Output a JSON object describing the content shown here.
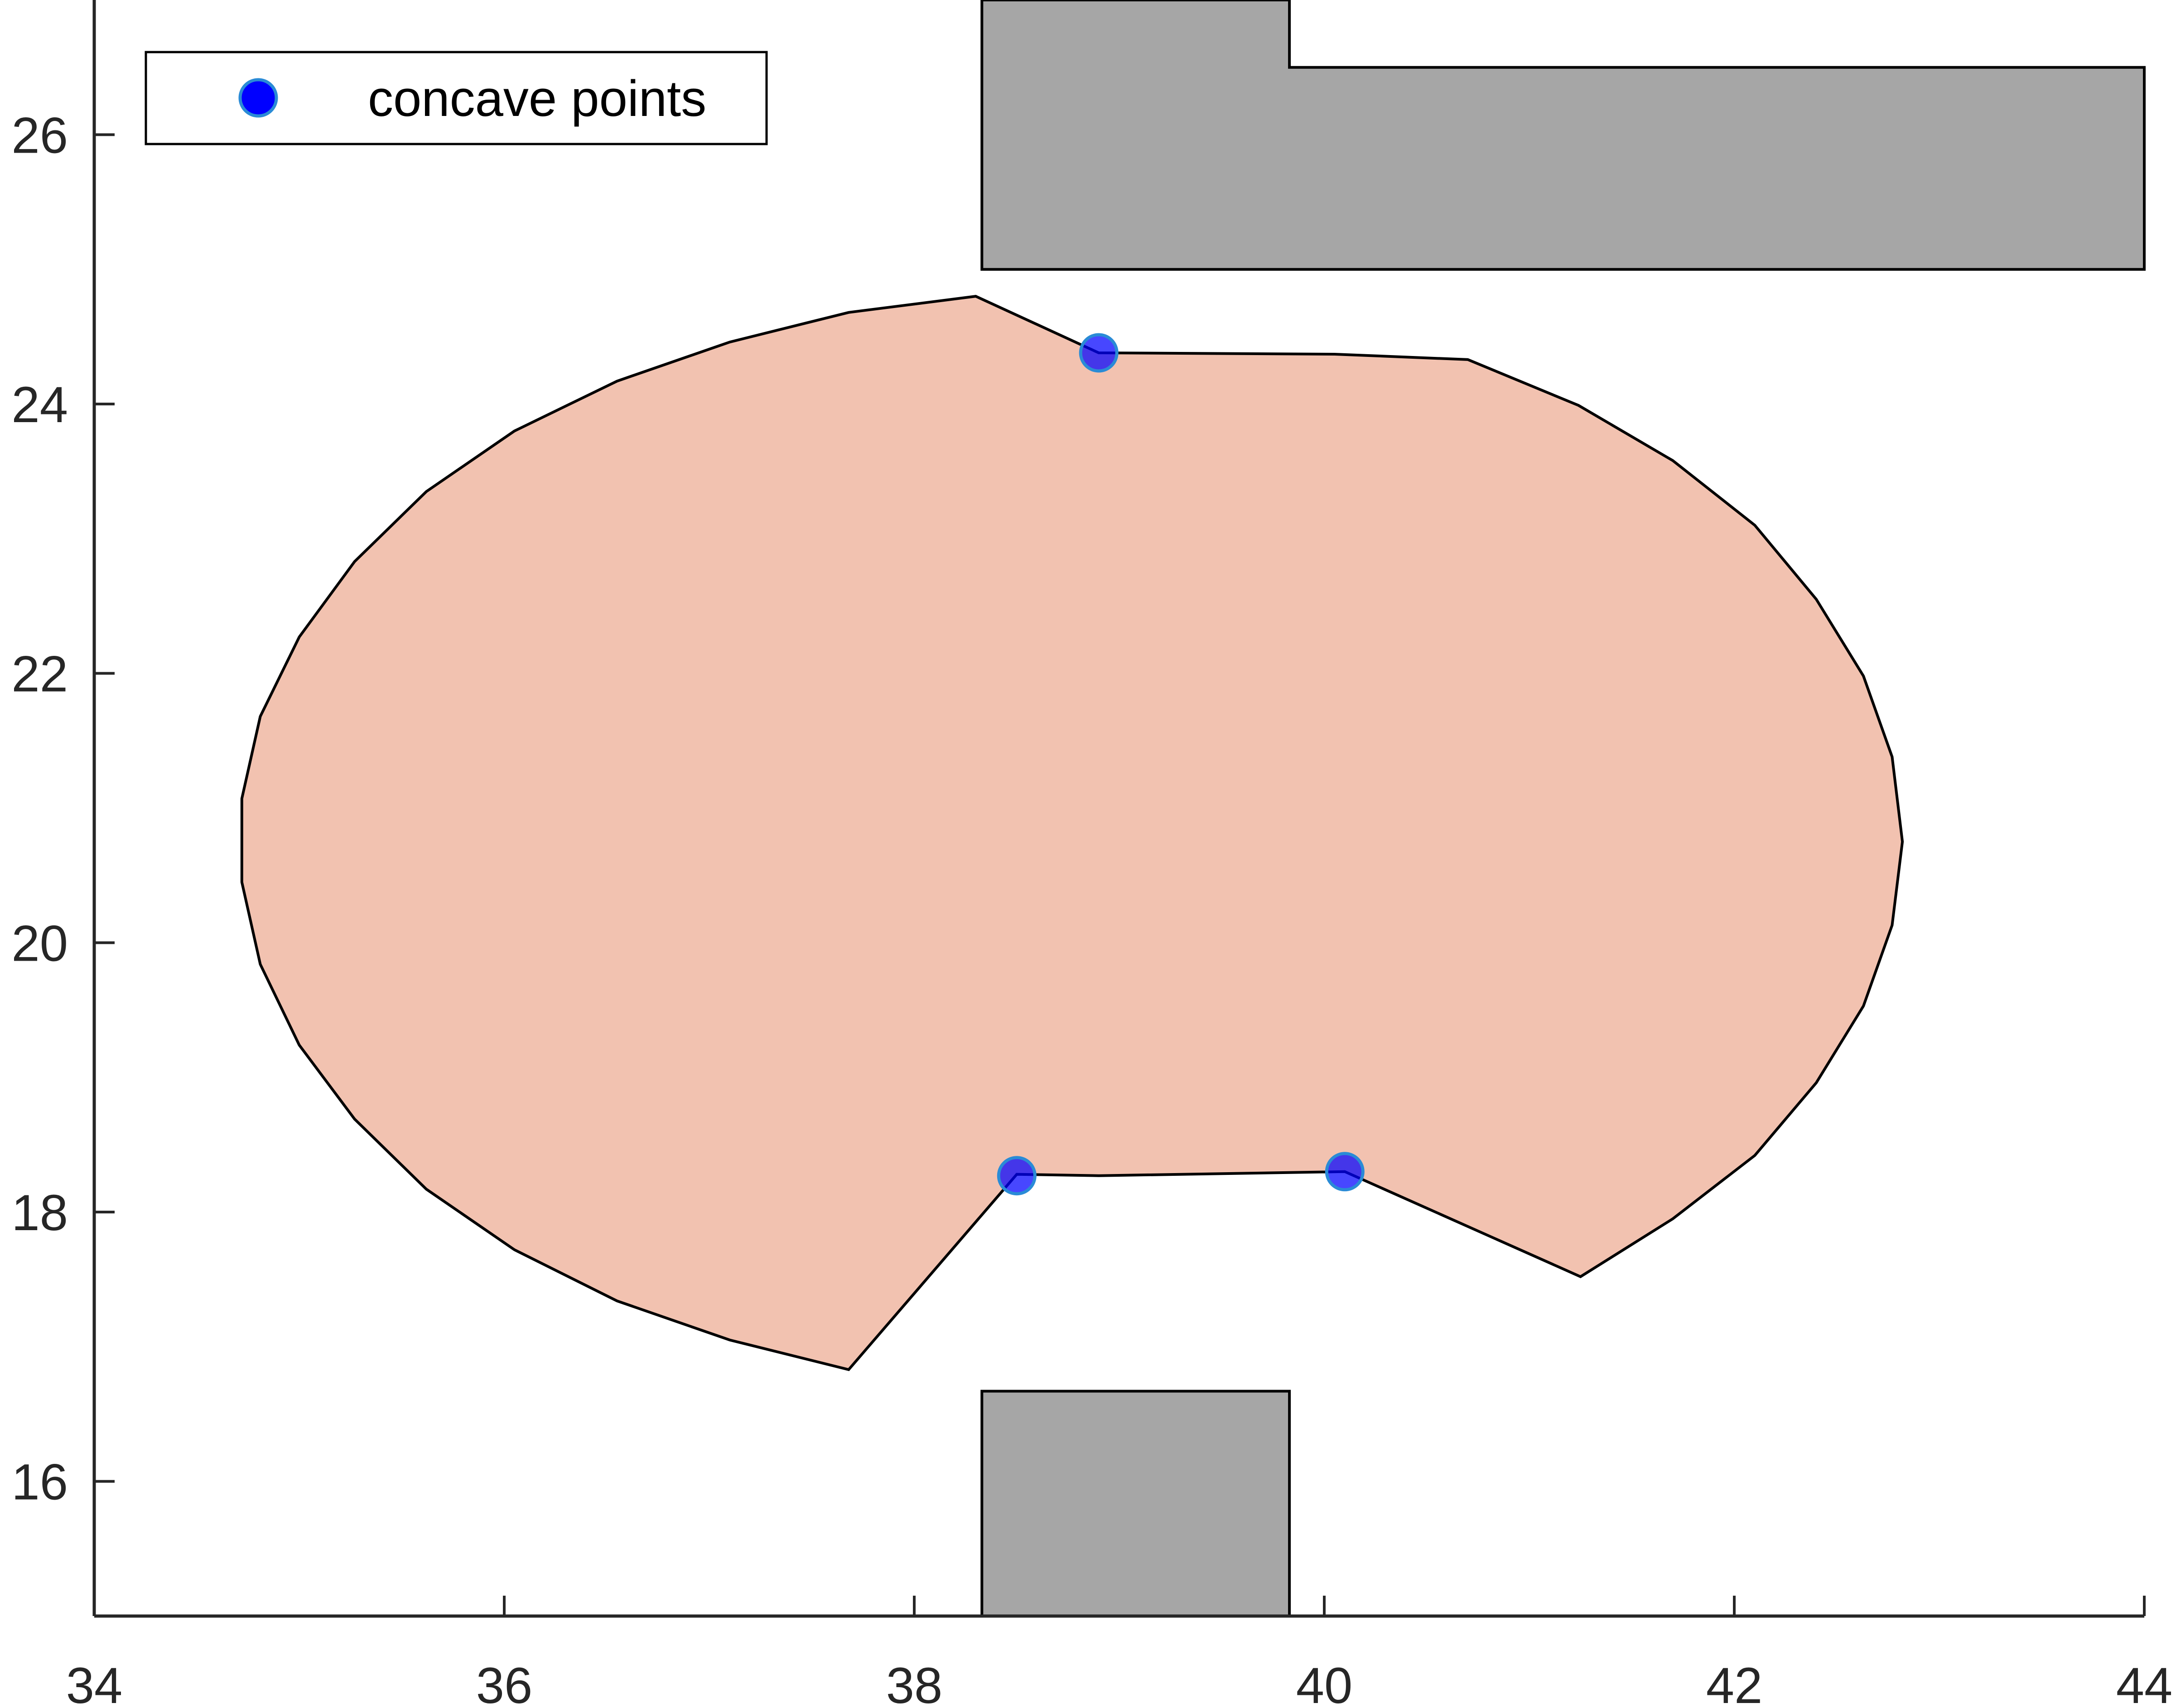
{
  "chart_data": {
    "type": "scatter",
    "xlim": [
      34,
      44
    ],
    "ylim": [
      15,
      27
    ],
    "x_ticks": [
      "34",
      "36",
      "38",
      "40",
      "42",
      "44"
    ],
    "y_ticks": [
      "16",
      "18",
      "20",
      "22",
      "24",
      "26"
    ],
    "grid": false,
    "legend": {
      "placement": "top-left",
      "entries": [
        {
          "label": "concave points",
          "marker_color": "#0000ff",
          "marker_edge": "#2a8bd6"
        }
      ]
    },
    "obstacles": {
      "color": "#a6a6a6",
      "polygons": [
        [
          [
            38.33,
            25
          ],
          [
            38.33,
            27
          ],
          [
            39.83,
            27
          ],
          [
            39.83,
            26.5
          ],
          [
            44,
            26.5
          ],
          [
            44,
            25
          ]
        ],
        [
          [
            38.33,
            15
          ],
          [
            38.33,
            16.67
          ],
          [
            39.83,
            16.67
          ],
          [
            39.83,
            15
          ]
        ]
      ]
    },
    "region": {
      "color": "#f2c2b0",
      "points": [
        [
          38.3,
          24.8
        ],
        [
          38.9,
          24.38
        ],
        [
          40.05,
          24.37
        ],
        [
          40.7,
          24.33
        ],
        [
          41.24,
          23.99
        ],
        [
          41.7,
          23.58
        ],
        [
          42.1,
          23.1
        ],
        [
          42.4,
          22.55
        ],
        [
          42.63,
          21.98
        ],
        [
          42.77,
          21.38
        ],
        [
          42.82,
          20.75
        ],
        [
          42.77,
          20.13
        ],
        [
          42.63,
          19.53
        ],
        [
          42.4,
          18.96
        ],
        [
          42.1,
          18.42
        ],
        [
          41.7,
          17.95
        ],
        [
          41.25,
          17.52
        ],
        [
          40.1,
          18.3
        ],
        [
          38.9,
          18.27
        ],
        [
          38.5,
          18.28
        ],
        [
          37.68,
          16.83
        ],
        [
          37.1,
          17.05
        ],
        [
          36.55,
          17.34
        ],
        [
          36.05,
          17.72
        ],
        [
          35.62,
          18.17
        ],
        [
          35.27,
          18.69
        ],
        [
          35.0,
          19.24
        ],
        [
          34.81,
          19.84
        ],
        [
          34.72,
          20.45
        ],
        [
          34.72,
          21.07
        ],
        [
          34.81,
          21.68
        ],
        [
          35.0,
          22.27
        ],
        [
          35.27,
          22.83
        ],
        [
          35.62,
          23.35
        ],
        [
          36.05,
          23.8
        ],
        [
          36.55,
          24.17
        ],
        [
          37.1,
          24.46
        ],
        [
          37.68,
          24.68
        ]
      ]
    },
    "series": [
      {
        "name": "concave points",
        "color": "#0000ff",
        "points": [
          [
            38.9,
            24.38
          ],
          [
            38.5,
            18.27
          ],
          [
            40.1,
            18.3
          ]
        ]
      }
    ]
  }
}
